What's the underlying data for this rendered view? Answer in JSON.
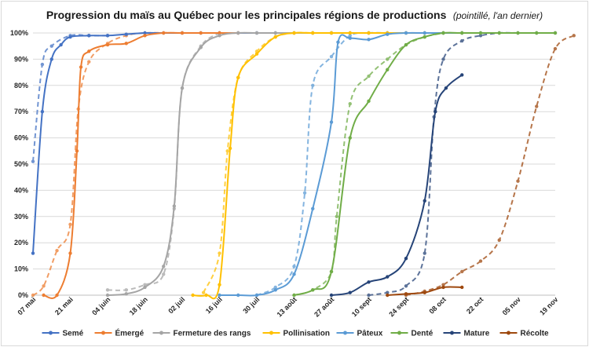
{
  "chart_data": {
    "type": "line",
    "title": "Progression du maïs au Québec pour les principales régions de productions",
    "subtitle": "(pointillé, l'an dernier)",
    "x_tick_labels": [
      "07 mai",
      "21 mai",
      "04 juin",
      "18 juin",
      "02 juil",
      "16 juil",
      "30 juil",
      "13 août",
      "27 août",
      "10 sept",
      "24 sept",
      "08 oct",
      "22 oct",
      "05 nov",
      "19 nov"
    ],
    "xlim": [
      0,
      196
    ],
    "ylim": [
      0,
      1
    ],
    "y_tick_labels": [
      "0%",
      "10%",
      "20%",
      "30%",
      "40%",
      "50%",
      "60%",
      "70%",
      "80%",
      "90%",
      "100%"
    ],
    "x_unit_note": "x values are days from 07 mai",
    "grid": "horizontal",
    "legend_position": "bottom",
    "series": [
      {
        "name": "Semé",
        "color": "#4472c4",
        "current": [
          [
            0,
            0.16
          ],
          [
            3.5,
            0.7
          ],
          [
            7,
            0.9
          ],
          [
            10.5,
            0.955
          ],
          [
            14,
            0.985
          ],
          [
            21,
            0.99
          ],
          [
            28,
            0.99
          ],
          [
            35,
            0.995
          ],
          [
            42,
            1.0
          ],
          [
            49,
            1.0
          ],
          [
            56,
            1.0
          ],
          [
            63,
            1.0
          ],
          [
            70,
            1.0
          ],
          [
            77,
            1.0
          ],
          [
            84,
            1.0
          ],
          [
            91,
            1.0
          ],
          [
            98,
            1.0
          ],
          [
            105,
            1.0
          ],
          [
            112,
            1.0
          ],
          [
            119,
            1.0
          ],
          [
            126,
            1.0
          ],
          [
            133,
            1.0
          ],
          [
            140,
            1.0
          ],
          [
            147,
            1.0
          ],
          [
            154,
            1.0
          ],
          [
            161,
            1.0
          ]
        ],
        "previous": [
          [
            0,
            0.51
          ],
          [
            3.5,
            0.88
          ],
          [
            7,
            0.95
          ],
          [
            14,
            0.99
          ],
          [
            21,
            0.99
          ],
          [
            28,
            0.99
          ]
        ]
      },
      {
        "name": "Émergé",
        "color": "#ed7d31",
        "current": [
          [
            4,
            0.0
          ],
          [
            9,
            0.0
          ],
          [
            14,
            0.16
          ],
          [
            16.5,
            0.55
          ],
          [
            18,
            0.87
          ],
          [
            21,
            0.93
          ],
          [
            28,
            0.955
          ],
          [
            35,
            0.96
          ],
          [
            42,
            0.99
          ],
          [
            49,
            1.0
          ],
          [
            56,
            1.0
          ],
          [
            63,
            1.0
          ],
          [
            70,
            1.0
          ],
          [
            77,
            1.0
          ]
        ],
        "previous": [
          [
            0,
            0.0
          ],
          [
            4,
            0.035
          ],
          [
            9,
            0.17
          ],
          [
            14,
            0.27
          ],
          [
            17,
            0.71
          ],
          [
            21,
            0.89
          ],
          [
            28,
            0.96
          ],
          [
            35,
            0.99
          ],
          [
            42,
            1.0
          ],
          [
            56,
            1.0
          ]
        ]
      },
      {
        "name": "Fermeture des rangs",
        "color": "#a5a5a5",
        "current": [
          [
            28,
            0.0
          ],
          [
            35,
            0.005
          ],
          [
            42,
            0.03
          ],
          [
            49,
            0.11
          ],
          [
            53,
            0.34
          ],
          [
            56,
            0.79
          ],
          [
            63,
            0.945
          ],
          [
            70,
            0.99
          ],
          [
            77,
            1.0
          ],
          [
            84,
            1.0
          ],
          [
            91,
            1.0
          ],
          [
            98,
            1.0
          ],
          [
            105,
            1.0
          ],
          [
            112,
            1.0
          ]
        ],
        "previous": [
          [
            28,
            0.02
          ],
          [
            35,
            0.02
          ],
          [
            42,
            0.04
          ],
          [
            49,
            0.08
          ],
          [
            53,
            0.33
          ],
          [
            56,
            0.79
          ],
          [
            63,
            0.95
          ],
          [
            70,
            1.0
          ]
        ]
      },
      {
        "name": "Pollinisation",
        "color": "#ffc000",
        "current": [
          [
            60,
            0.0
          ],
          [
            65,
            0.0
          ],
          [
            70,
            0.04
          ],
          [
            74,
            0.56
          ],
          [
            77,
            0.83
          ],
          [
            84,
            0.92
          ],
          [
            91,
            0.985
          ],
          [
            98,
            1.0
          ],
          [
            105,
            1.0
          ],
          [
            112,
            1.0
          ],
          [
            119,
            1.0
          ],
          [
            126,
            1.0
          ],
          [
            133,
            1.0
          ],
          [
            140,
            1.0
          ],
          [
            147,
            1.0
          ],
          [
            154,
            1.0
          ],
          [
            161,
            1.0
          ]
        ],
        "previous": [
          [
            64,
            0.01
          ],
          [
            70,
            0.16
          ],
          [
            73,
            0.55
          ],
          [
            77,
            0.83
          ],
          [
            84,
            0.93
          ],
          [
            91,
            0.985
          ],
          [
            98,
            1.0
          ],
          [
            105,
            1.0
          ]
        ]
      },
      {
        "name": "Pâteux",
        "color": "#5b9bd5",
        "current": [
          [
            70,
            0.0
          ],
          [
            77,
            0.0
          ],
          [
            84,
            0.0
          ],
          [
            91,
            0.02
          ],
          [
            98,
            0.08
          ],
          [
            105,
            0.33
          ],
          [
            112,
            0.66
          ],
          [
            114.5,
            0.965
          ],
          [
            119,
            0.98
          ],
          [
            126,
            0.975
          ],
          [
            133,
            0.995
          ],
          [
            140,
            1.0
          ],
          [
            147,
            1.0
          ],
          [
            154,
            1.0
          ],
          [
            161,
            1.0
          ],
          [
            168,
            1.0
          ]
        ],
        "previous": [
          [
            84,
            0.0
          ],
          [
            91,
            0.03
          ],
          [
            98,
            0.11
          ],
          [
            102,
            0.39
          ],
          [
            105,
            0.8
          ],
          [
            112,
            0.91
          ],
          [
            119,
            0.99
          ],
          [
            126,
            1.0
          ],
          [
            133,
            1.0
          ]
        ]
      },
      {
        "name": "Denté",
        "color": "#70ad47",
        "current": [
          [
            98,
            0.0
          ],
          [
            105,
            0.02
          ],
          [
            112,
            0.09
          ],
          [
            119,
            0.6
          ],
          [
            126,
            0.74
          ],
          [
            133,
            0.86
          ],
          [
            140,
            0.955
          ],
          [
            147,
            0.985
          ],
          [
            154,
            1.0
          ],
          [
            161,
            1.0
          ],
          [
            168,
            1.0
          ],
          [
            175,
            1.0
          ],
          [
            182,
            1.0
          ],
          [
            189,
            1.0
          ],
          [
            196,
            1.0
          ]
        ],
        "previous": [
          [
            98,
            0.0
          ],
          [
            105,
            0.02
          ],
          [
            112,
            0.09
          ],
          [
            114,
            0.3
          ],
          [
            119,
            0.73
          ],
          [
            126,
            0.835
          ],
          [
            133,
            0.9
          ],
          [
            140,
            0.955
          ],
          [
            147,
            0.985
          ],
          [
            154,
            1.0
          ]
        ]
      },
      {
        "name": "Mature",
        "color": "#264478",
        "current": [
          [
            112,
            0.0
          ],
          [
            119,
            0.01
          ],
          [
            126,
            0.05
          ],
          [
            133,
            0.07
          ],
          [
            140,
            0.14
          ],
          [
            147,
            0.36
          ],
          [
            151,
            0.7
          ],
          [
            155,
            0.79
          ],
          [
            161,
            0.84
          ]
        ],
        "previous": [
          [
            126,
            0.0
          ],
          [
            133,
            0.01
          ],
          [
            140,
            0.035
          ],
          [
            147,
            0.16
          ],
          [
            150.5,
            0.68
          ],
          [
            154,
            0.9
          ],
          [
            161,
            0.97
          ],
          [
            168,
            0.99
          ],
          [
            175,
            1.0
          ],
          [
            182,
            1.0
          ],
          [
            189,
            1.0
          ],
          [
            196,
            1.0
          ]
        ]
      },
      {
        "name": "Récolte",
        "color": "#9e480e",
        "current": [
          [
            133,
            0.0
          ],
          [
            140,
            0.005
          ],
          [
            147,
            0.01
          ],
          [
            154,
            0.03
          ],
          [
            161,
            0.03
          ]
        ],
        "previous": [
          [
            140,
            0.0
          ],
          [
            147,
            0.015
          ],
          [
            154,
            0.04
          ],
          [
            161,
            0.09
          ],
          [
            168,
            0.13
          ],
          [
            175,
            0.21
          ],
          [
            182,
            0.435
          ],
          [
            189,
            0.72
          ],
          [
            196,
            0.94
          ],
          [
            203,
            0.99
          ]
        ]
      }
    ]
  }
}
